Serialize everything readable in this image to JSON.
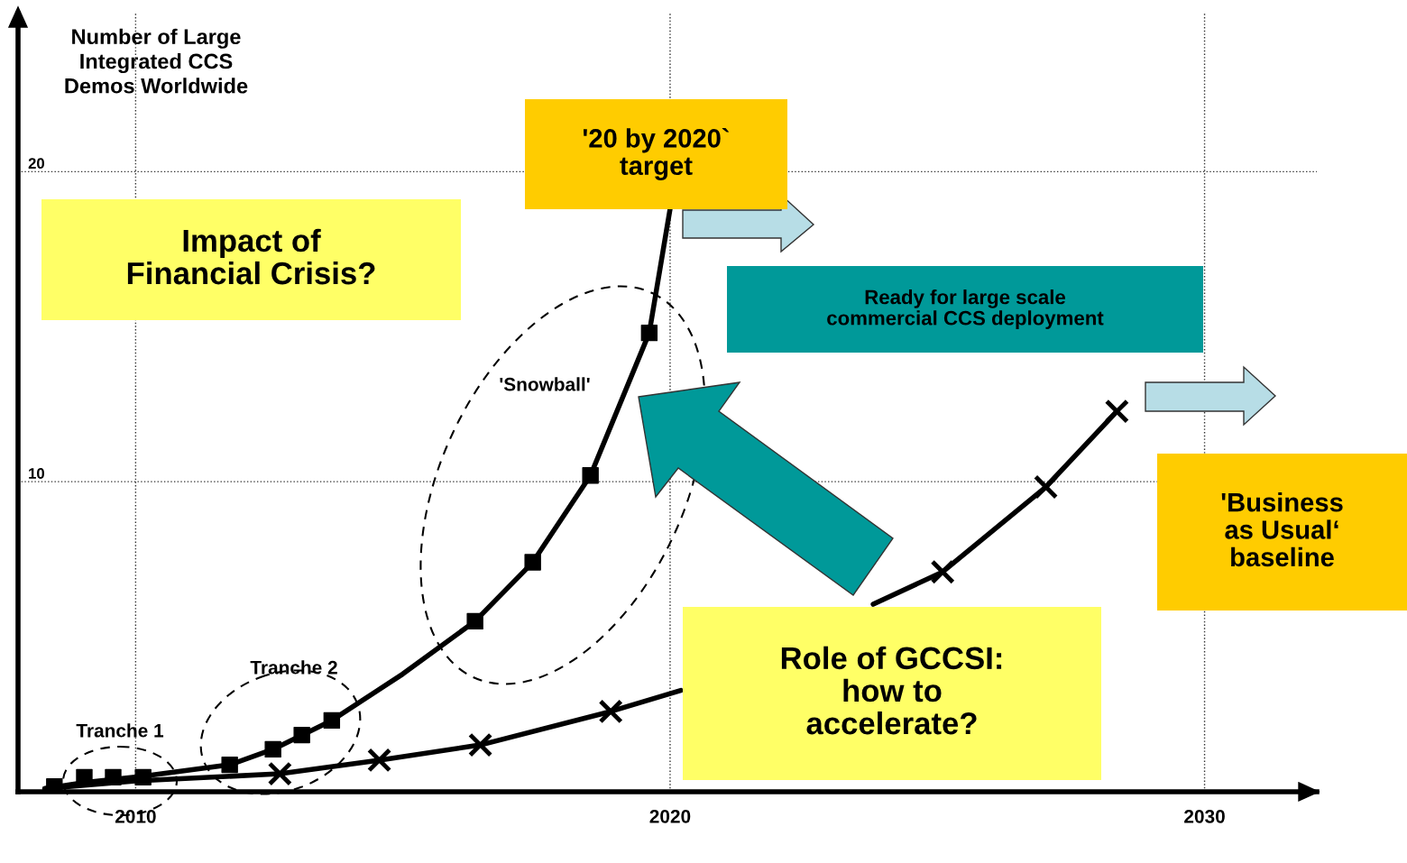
{
  "chart_data": {
    "type": "line",
    "ylabel": "Number of Large\nIntegrated CCS\nDemos Worldwide",
    "xlim": [
      2007.8,
      2032.1
    ],
    "ylim": [
      0,
      25.1
    ],
    "xticks": [
      2010,
      2020,
      2030
    ],
    "yticks": [
      10,
      20
    ],
    "grid": true,
    "series": [
      {
        "color": "#000000",
        "x": [
          2008.3,
          2009.04,
          2010.14,
          2011.76,
          2012.57,
          2013.67,
          2015,
          2016.35,
          2017.43,
          2018.51,
          2019.61,
          2020.0
        ],
        "values": [
          0.1,
          0.3,
          0.5,
          0.87,
          1.37,
          2.3,
          3.8,
          5.5,
          7.4,
          10.2,
          14.8,
          18.8
        ]
      },
      {
        "type": "scatter",
        "color": "#000000",
        "marker": "square",
        "x": [
          2008.48,
          2009.04,
          2009.58,
          2010.14,
          2011.76,
          2012.57,
          2013.11,
          2013.67,
          2016.35,
          2017.43,
          2018.51,
          2019.61
        ],
        "values": [
          0.17,
          0.47,
          0.47,
          0.47,
          0.87,
          1.37,
          1.83,
          2.3,
          5.5,
          7.4,
          10.2,
          14.8
        ]
      },
      {
        "color": "#000000",
        "x": [
          2008.3,
          2010,
          2012.7,
          2014.56,
          2016.45,
          2018.89,
          2020.2,
          2022,
          2023.8,
          2025.1,
          2027.03,
          2028.36
        ],
        "values": [
          0.1,
          0.35,
          0.58,
          1.02,
          1.51,
          2.59,
          3.27,
          null,
          6.05,
          7.09,
          9.83,
          12.27
        ]
      },
      {
        "type": "scatter",
        "color": "#000000",
        "marker": "cross",
        "x": [
          2012.7,
          2014.56,
          2016.45,
          2018.89,
          2025.1,
          2027.03,
          2028.36
        ],
        "values": [
          0.58,
          1.02,
          1.51,
          2.59,
          7.09,
          9.83,
          12.27
        ]
      }
    ],
    "annotations": [
      "Impact of\nFinancial Crisis?",
      "'20 by 2020`\ntarget",
      "Ready for large scale\ncommercial CCS deployment",
      "Role of GCCSI:\nhow to\naccelerate?",
      "'Business\nas Usual‘\nbaseline",
      "'Snowball'",
      "Tranche 2",
      "Tranche 1"
    ]
  }
}
